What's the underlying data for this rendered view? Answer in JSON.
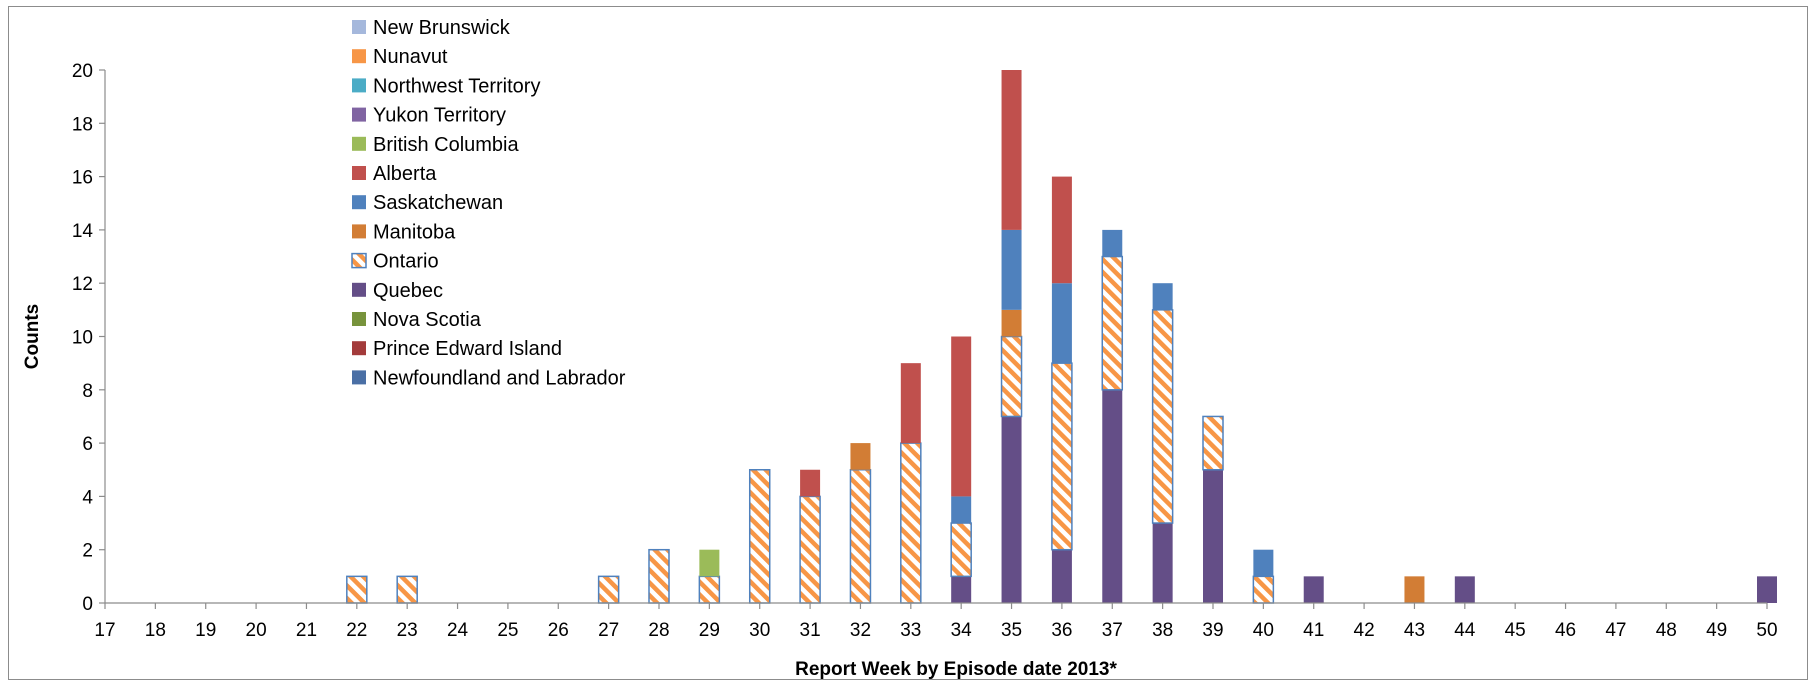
{
  "chart_data": {
    "type": "bar",
    "stacked": true,
    "title": "",
    "xlabel": "Report Week by Episode date 2013*",
    "ylabel": "Counts",
    "ylim": [
      0,
      20
    ],
    "yticks": [
      0,
      2,
      4,
      6,
      8,
      10,
      12,
      14,
      16,
      18,
      20
    ],
    "grid": false,
    "legend_position": "top-left",
    "categories": [
      "17",
      "18",
      "19",
      "20",
      "21",
      "22",
      "23",
      "24",
      "25",
      "26",
      "27",
      "28",
      "29",
      "30",
      "31",
      "32",
      "33",
      "34",
      "35",
      "36",
      "37",
      "38",
      "39",
      "40",
      "41",
      "42",
      "43",
      "44",
      "45",
      "46",
      "47",
      "48",
      "49",
      "50"
    ],
    "series": [
      {
        "name": "Newfoundland and Labrador",
        "color": "#4a6fa5",
        "values": [
          0,
          0,
          0,
          0,
          0,
          0,
          0,
          0,
          0,
          0,
          0,
          0,
          0,
          0,
          0,
          0,
          0,
          0,
          0,
          0,
          0,
          0,
          0,
          0,
          0,
          0,
          0,
          0,
          0,
          0,
          0,
          0,
          0,
          0
        ]
      },
      {
        "name": "Prince Edward Island",
        "color": "#a33b3b",
        "values": [
          0,
          0,
          0,
          0,
          0,
          0,
          0,
          0,
          0,
          0,
          0,
          0,
          0,
          0,
          0,
          0,
          0,
          0,
          0,
          0,
          0,
          0,
          0,
          0,
          0,
          0,
          0,
          0,
          0,
          0,
          0,
          0,
          0,
          0
        ]
      },
      {
        "name": "Nova Scotia",
        "color": "#77933c",
        "values": [
          0,
          0,
          0,
          0,
          0,
          0,
          0,
          0,
          0,
          0,
          0,
          0,
          0,
          0,
          0,
          0,
          0,
          0,
          0,
          0,
          0,
          0,
          0,
          0,
          0,
          0,
          0,
          0,
          0,
          0,
          0,
          0,
          0,
          0
        ]
      },
      {
        "name": "Quebec",
        "color": "#644e87",
        "values": [
          0,
          0,
          0,
          0,
          0,
          0,
          0,
          0,
          0,
          0,
          0,
          0,
          0,
          0,
          0,
          0,
          0,
          1,
          7,
          2,
          8,
          3,
          5,
          0,
          1,
          0,
          0,
          1,
          0,
          0,
          0,
          0,
          0,
          1
        ]
      },
      {
        "name": "Ontario",
        "color": "#f79646",
        "pattern": "hatched",
        "values": [
          0,
          0,
          0,
          0,
          0,
          1,
          1,
          0,
          0,
          0,
          1,
          2,
          1,
          5,
          4,
          5,
          6,
          2,
          3,
          7,
          5,
          8,
          2,
          1,
          0,
          0,
          0,
          0,
          0,
          0,
          0,
          0,
          0,
          0
        ]
      },
      {
        "name": "Manitoba",
        "color": "#d27d35",
        "values": [
          0,
          0,
          0,
          0,
          0,
          0,
          0,
          0,
          0,
          0,
          0,
          0,
          0,
          0,
          0,
          1,
          0,
          0,
          1,
          0,
          0,
          0,
          0,
          0,
          0,
          0,
          1,
          0,
          0,
          0,
          0,
          0,
          0,
          0
        ]
      },
      {
        "name": "Saskatchewan",
        "color": "#4f81bd",
        "values": [
          0,
          0,
          0,
          0,
          0,
          0,
          0,
          0,
          0,
          0,
          0,
          0,
          0,
          0,
          0,
          0,
          0,
          1,
          3,
          3,
          1,
          1,
          0,
          1,
          0,
          0,
          0,
          0,
          0,
          0,
          0,
          0,
          0,
          0
        ]
      },
      {
        "name": "Alberta",
        "color": "#c0504d",
        "values": [
          0,
          0,
          0,
          0,
          0,
          0,
          0,
          0,
          0,
          0,
          0,
          0,
          0,
          0,
          1,
          0,
          3,
          6,
          6,
          4,
          0,
          0,
          0,
          0,
          0,
          0,
          0,
          0,
          0,
          0,
          0,
          0,
          0,
          0
        ]
      },
      {
        "name": "British Columbia",
        "color": "#9bbb59",
        "values": [
          0,
          0,
          0,
          0,
          0,
          0,
          0,
          0,
          0,
          0,
          0,
          0,
          1,
          0,
          0,
          0,
          0,
          0,
          0,
          0,
          0,
          0,
          0,
          0,
          0,
          0,
          0,
          0,
          0,
          0,
          0,
          0,
          0,
          0
        ]
      },
      {
        "name": "Yukon Territory",
        "color": "#8064a2",
        "values": [
          0,
          0,
          0,
          0,
          0,
          0,
          0,
          0,
          0,
          0,
          0,
          0,
          0,
          0,
          0,
          0,
          0,
          0,
          0,
          0,
          0,
          0,
          0,
          0,
          0,
          0,
          0,
          0,
          0,
          0,
          0,
          0,
          0,
          0
        ]
      },
      {
        "name": "Northwest Territory",
        "color": "#4bacc6",
        "values": [
          0,
          0,
          0,
          0,
          0,
          0,
          0,
          0,
          0,
          0,
          0,
          0,
          0,
          0,
          0,
          0,
          0,
          0,
          0,
          0,
          0,
          0,
          0,
          0,
          0,
          0,
          0,
          0,
          0,
          0,
          0,
          0,
          0,
          0
        ]
      },
      {
        "name": "Nunavut",
        "color": "#f79646",
        "values": [
          0,
          0,
          0,
          0,
          0,
          0,
          0,
          0,
          0,
          0,
          0,
          0,
          0,
          0,
          0,
          0,
          0,
          0,
          0,
          0,
          0,
          0,
          0,
          0,
          0,
          0,
          0,
          0,
          0,
          0,
          0,
          0,
          0,
          0
        ]
      },
      {
        "name": "New Brunswick",
        "color": "#a5b8dc",
        "values": [
          0,
          0,
          0,
          0,
          0,
          0,
          0,
          0,
          0,
          0,
          0,
          0,
          0,
          0,
          0,
          0,
          0,
          0,
          0,
          0,
          0,
          0,
          0,
          0,
          0,
          0,
          0,
          0,
          0,
          0,
          0,
          0,
          0,
          0
        ]
      }
    ],
    "legend_order": [
      "New Brunswick",
      "Nunavut",
      "Northwest Territory",
      "Yukon Territory",
      "British Columbia",
      "Alberta",
      "Saskatchewan",
      "Manitoba",
      "Ontario",
      "Quebec",
      "Nova Scotia",
      "Prince Edward Island",
      "Newfoundland and Labrador"
    ]
  }
}
